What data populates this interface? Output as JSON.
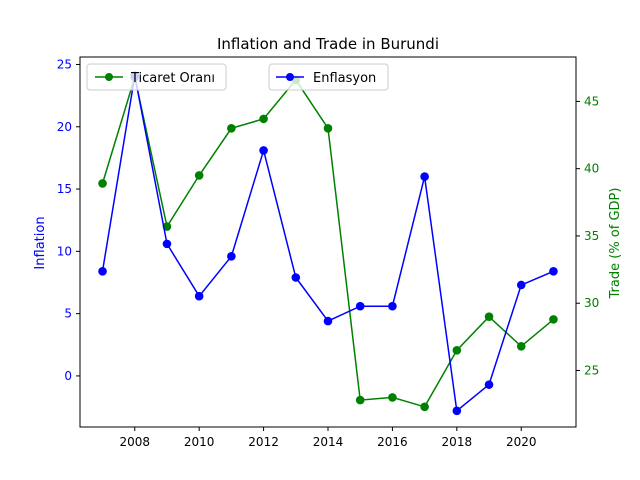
{
  "chart_data": {
    "type": "line",
    "title": "Inflation and Trade in Burundi",
    "x": [
      2007,
      2008,
      2009,
      2010,
      2011,
      2012,
      2013,
      2014,
      2015,
      2016,
      2017,
      2018,
      2019,
      2020,
      2021
    ],
    "xlim": [
      2006.3,
      2021.7
    ],
    "x_ticks": [
      2008,
      2010,
      2012,
      2014,
      2016,
      2018,
      2020
    ],
    "left_axis": {
      "label": "Inflation",
      "color": "#0000ff",
      "ylim": [
        -4.1,
        25.6
      ],
      "ticks": [
        0,
        5,
        10,
        15,
        20,
        25
      ]
    },
    "right_axis": {
      "label": "Trade (% of GDP)",
      "color": "#008000",
      "ylim": [
        20.8,
        48.3
      ],
      "ticks": [
        25,
        30,
        35,
        40,
        45
      ]
    },
    "series": [
      {
        "name": "Enflasyon",
        "axis": "left",
        "color": "#0000ff",
        "values": [
          8.4,
          24.1,
          10.6,
          6.4,
          9.6,
          18.1,
          7.9,
          4.4,
          5.6,
          5.6,
          16.0,
          -2.8,
          -0.7,
          7.3,
          8.4
        ]
      },
      {
        "name": "Ticaret Oranı",
        "axis": "right",
        "color": "#008000",
        "values": [
          38.9,
          46.8,
          35.7,
          39.5,
          43.0,
          43.7,
          46.6,
          43.0,
          22.8,
          23.0,
          22.3,
          26.5,
          29.0,
          26.8,
          28.8
        ]
      }
    ],
    "legends": [
      {
        "entries": [
          "Ticaret Oranı"
        ],
        "placement": "top-left"
      },
      {
        "entries": [
          "Enflasyon"
        ],
        "placement": "top-center"
      }
    ],
    "grid": false
  }
}
